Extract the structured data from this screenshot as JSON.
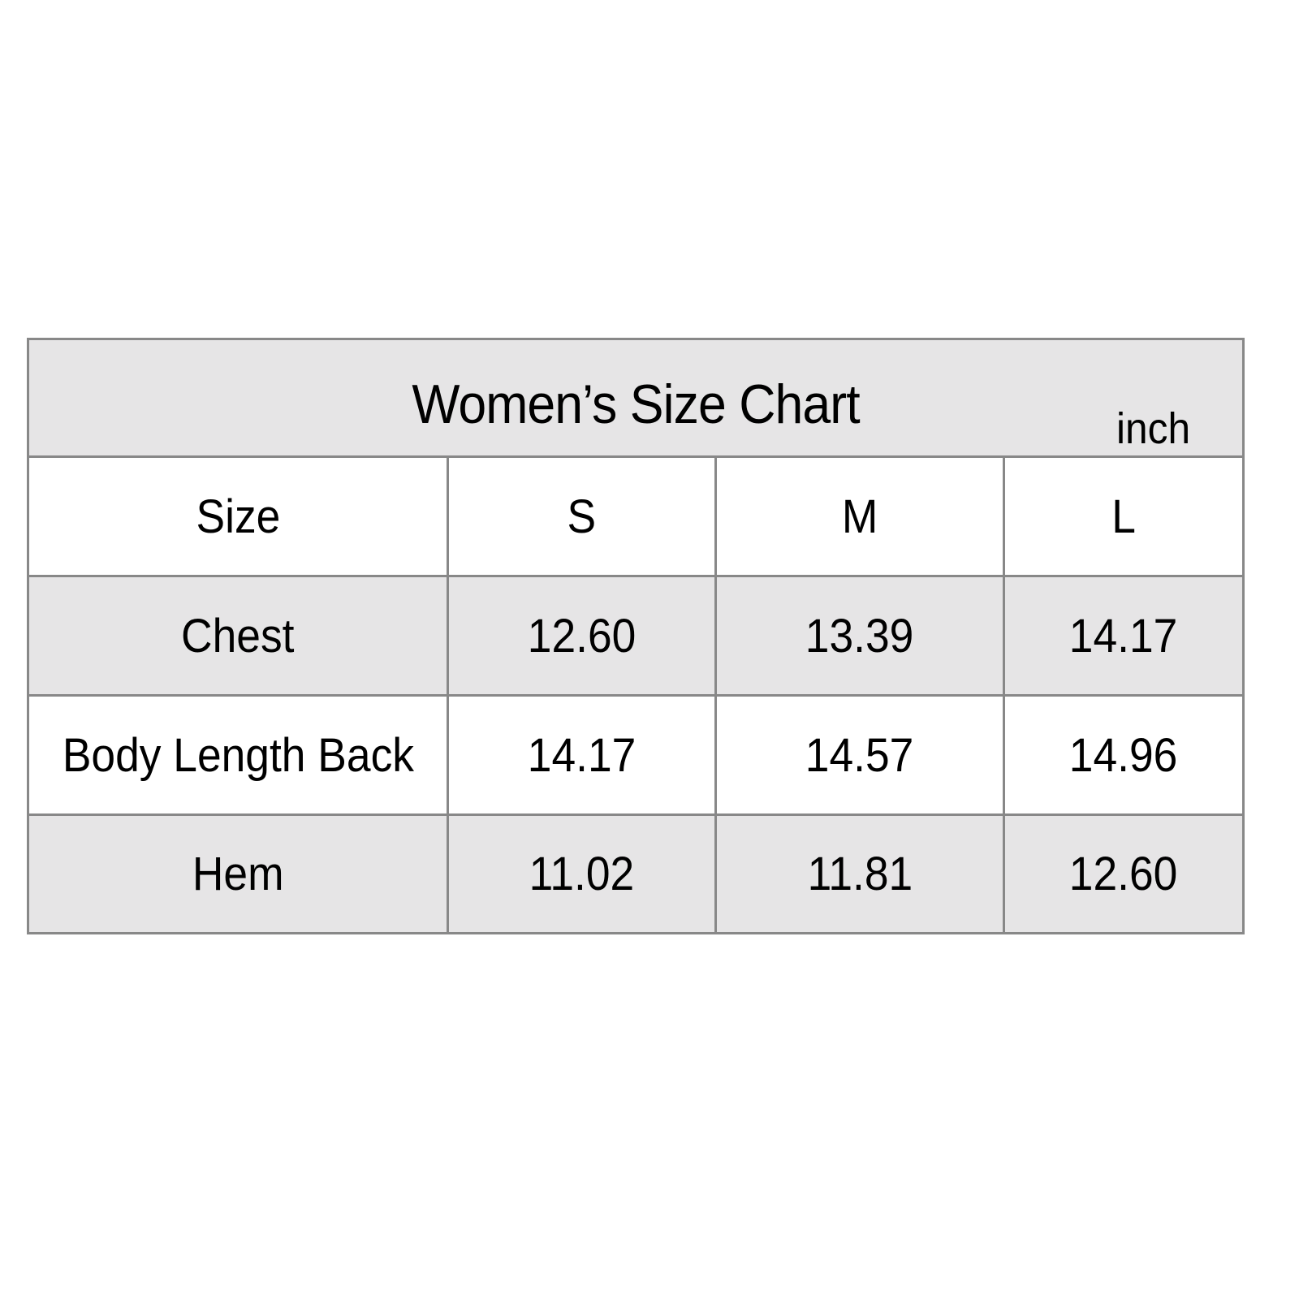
{
  "title": "Women’s Size Chart",
  "unit": "inch",
  "header": [
    "Size",
    "S",
    "M",
    "L"
  ],
  "rows": [
    {
      "label": "Chest",
      "values": [
        "12.60",
        "13.39",
        "14.17"
      ]
    },
    {
      "label": "Body Length Back",
      "values": [
        "14.17",
        "14.57",
        "14.96"
      ]
    },
    {
      "label": "Hem",
      "values": [
        "11.02",
        "11.81",
        "12.60"
      ]
    }
  ],
  "colors": {
    "shaded_row": "#e6e5e6",
    "border": "#888888"
  }
}
